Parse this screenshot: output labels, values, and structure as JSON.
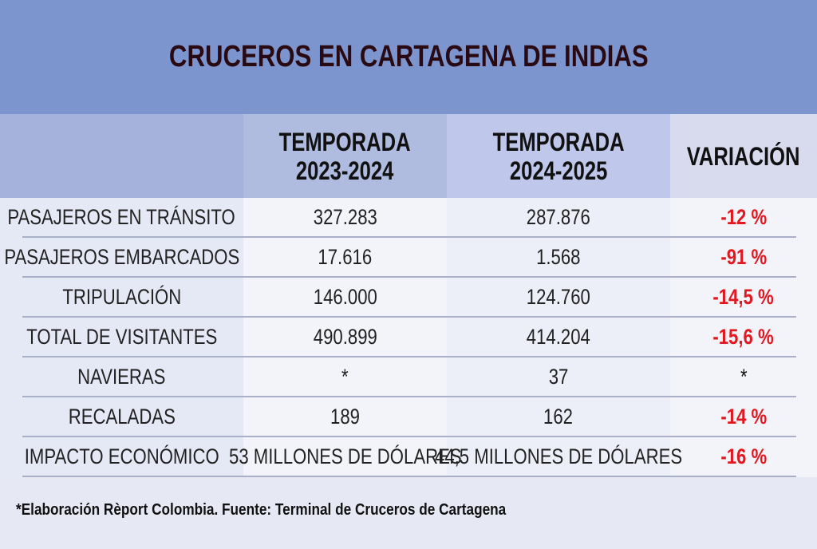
{
  "title": "CRUCEROS EN CARTAGENA DE INDIAS",
  "columns": [
    "",
    "TEMPORADA\n2023-2024",
    "TEMPORADA\n2024-2025",
    "VARIACIÓN"
  ],
  "rows": [
    {
      "label": "PASAJEROS EN TRÁNSITO",
      "s2023": "327.283",
      "s2024": "287.876",
      "variation": "-12 %"
    },
    {
      "label": "PASAJEROS EMBARCADOS",
      "s2023": "17.616",
      "s2024": "1.568",
      "variation": "-91 %"
    },
    {
      "label": "TRIPULACIÓN",
      "s2023": "146.000",
      "s2024": "124.760",
      "variation": "-14,5 %"
    },
    {
      "label": "TOTAL DE VISITANTES",
      "s2023": "490.899",
      "s2024": "414.204",
      "variation": "-15,6 %"
    },
    {
      "label": "NAVIERAS",
      "s2023": "*",
      "s2024": "37",
      "variation": "*"
    },
    {
      "label": "RECALADAS",
      "s2023": "189",
      "s2024": "162",
      "variation": "-14 %"
    },
    {
      "label": "IMPACTO ECONÓMICO",
      "s2023": "53 MILLONES DE DÓLARES",
      "s2024": "44,5 MILLONES DE DÓLARES",
      "variation": "-16 %"
    }
  ],
  "footnote": "*Elaboración Rèport Colombia. Fuente: Terminal de Cruceros de Cartagena",
  "colors": {
    "title_band": "#7d95cf",
    "title_text": "#2a0a12",
    "negative_variation": "#e3171f"
  }
}
